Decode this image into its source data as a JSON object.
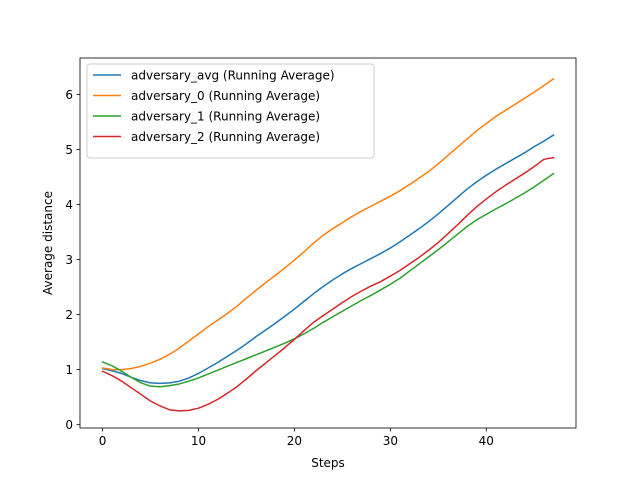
{
  "chart_data": {
    "type": "line",
    "title": "",
    "xlabel": "Steps",
    "ylabel": "Average distance",
    "xlim": [
      -2.35,
      49.35
    ],
    "ylim": [
      -0.06,
      6.66
    ],
    "xticks": [
      0,
      10,
      20,
      30,
      40
    ],
    "yticks": [
      0,
      1,
      2,
      3,
      4,
      5,
      6
    ],
    "grid": false,
    "legend_position": "upper-left",
    "x": [
      0,
      1,
      2,
      3,
      4,
      5,
      6,
      7,
      8,
      9,
      10,
      11,
      12,
      13,
      14,
      15,
      16,
      17,
      18,
      19,
      20,
      21,
      22,
      23,
      24,
      25,
      26,
      27,
      28,
      29,
      30,
      31,
      32,
      33,
      34,
      35,
      36,
      37,
      38,
      39,
      40,
      41,
      42,
      43,
      44,
      45,
      46,
      47
    ],
    "series": [
      {
        "name": "adversary_avg (Running Average)",
        "color": "#1f77b4",
        "values": [
          1.02,
          0.98,
          0.93,
          0.86,
          0.8,
          0.76,
          0.75,
          0.76,
          0.79,
          0.85,
          0.93,
          1.03,
          1.13,
          1.24,
          1.35,
          1.47,
          1.6,
          1.72,
          1.84,
          1.97,
          2.1,
          2.24,
          2.38,
          2.51,
          2.63,
          2.74,
          2.84,
          2.93,
          3.02,
          3.11,
          3.21,
          3.32,
          3.44,
          3.56,
          3.69,
          3.83,
          3.98,
          4.13,
          4.28,
          4.41,
          4.53,
          4.64,
          4.74,
          4.84,
          4.94,
          5.05,
          5.15,
          5.26
        ]
      },
      {
        "name": "adversary_0 (Running Average)",
        "color": "#ff7f0e",
        "values": [
          1.03,
          1.0,
          1.0,
          1.02,
          1.06,
          1.12,
          1.19,
          1.28,
          1.39,
          1.52,
          1.65,
          1.78,
          1.9,
          2.02,
          2.15,
          2.3,
          2.44,
          2.58,
          2.71,
          2.85,
          2.99,
          3.14,
          3.3,
          3.44,
          3.56,
          3.67,
          3.78,
          3.88,
          3.97,
          4.06,
          4.15,
          4.25,
          4.36,
          4.48,
          4.6,
          4.74,
          4.89,
          5.04,
          5.19,
          5.34,
          5.47,
          5.6,
          5.71,
          5.82,
          5.93,
          6.04,
          6.16,
          6.28
        ]
      },
      {
        "name": "adversary_1 (Running Average)",
        "color": "#2ca02c",
        "values": [
          1.14,
          1.07,
          0.97,
          0.86,
          0.76,
          0.7,
          0.69,
          0.71,
          0.74,
          0.79,
          0.85,
          0.92,
          0.99,
          1.06,
          1.13,
          1.2,
          1.27,
          1.34,
          1.41,
          1.48,
          1.56,
          1.65,
          1.75,
          1.86,
          1.96,
          2.06,
          2.16,
          2.26,
          2.35,
          2.45,
          2.55,
          2.66,
          2.79,
          2.92,
          3.05,
          3.18,
          3.32,
          3.46,
          3.6,
          3.72,
          3.82,
          3.92,
          4.01,
          4.11,
          4.21,
          4.32,
          4.44,
          4.56
        ]
      },
      {
        "name": "adversary_2 (Running Average)",
        "color": "#d62728",
        "values": [
          0.97,
          0.89,
          0.79,
          0.67,
          0.55,
          0.43,
          0.34,
          0.27,
          0.25,
          0.26,
          0.3,
          0.37,
          0.46,
          0.57,
          0.69,
          0.83,
          0.98,
          1.12,
          1.26,
          1.4,
          1.55,
          1.71,
          1.86,
          1.98,
          2.1,
          2.22,
          2.33,
          2.43,
          2.52,
          2.6,
          2.7,
          2.8,
          2.92,
          3.04,
          3.17,
          3.31,
          3.47,
          3.63,
          3.8,
          3.96,
          4.1,
          4.23,
          4.35,
          4.46,
          4.57,
          4.69,
          4.82,
          4.85
        ]
      }
    ]
  }
}
